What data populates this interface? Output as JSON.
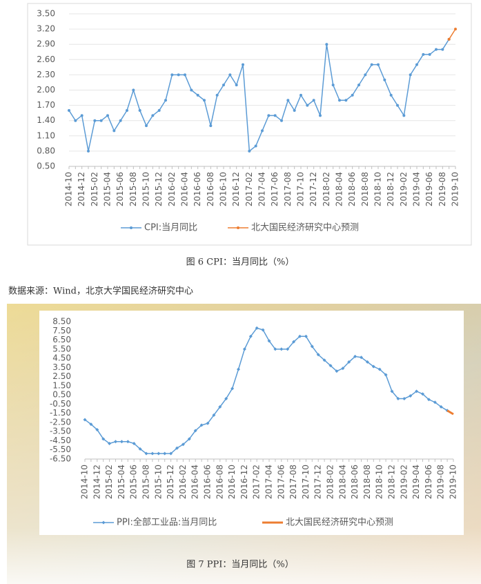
{
  "chart_data": [
    {
      "type": "line",
      "categories": [
        "2014-10",
        null,
        "2014-12",
        null,
        "2015-02",
        null,
        "2015-04",
        null,
        "2015-06",
        null,
        "2015-08",
        null,
        "2015-10",
        null,
        "2015-12",
        null,
        "2016-02",
        null,
        "2016-04",
        null,
        "2016-06",
        null,
        "2016-08",
        null,
        "2016-10",
        null,
        "2016-12",
        null,
        "2017-02",
        null,
        "2017-04",
        null,
        "2017-06",
        null,
        "2017-08",
        null,
        "2017-10",
        null,
        "2017-12",
        null,
        "2018-02",
        null,
        "2018-04",
        null,
        "2018-06",
        null,
        "2018-08",
        null,
        "2018-10",
        null,
        "2018-12",
        null,
        "2019-02",
        null,
        "2019-04",
        null,
        "2019-06",
        null,
        "2019-08",
        null,
        "2019-10"
      ],
      "series": [
        {
          "name": "CPI:当月同比",
          "color": "#5b9bd5",
          "values": [
            1.6,
            1.4,
            1.5,
            0.8,
            1.4,
            1.4,
            1.5,
            1.2,
            1.4,
            1.6,
            2.0,
            1.6,
            1.3,
            1.5,
            1.6,
            1.8,
            2.3,
            2.3,
            2.3,
            2.0,
            1.9,
            1.8,
            1.3,
            1.9,
            2.1,
            2.3,
            2.1,
            2.5,
            0.8,
            0.9,
            1.2,
            1.5,
            1.5,
            1.4,
            1.8,
            1.6,
            1.9,
            1.7,
            1.8,
            1.5,
            2.9,
            2.1,
            1.8,
            1.8,
            1.9,
            2.1,
            2.3,
            2.5,
            2.5,
            2.2,
            1.9,
            1.7,
            1.5,
            2.3,
            2.5,
            2.7,
            2.7,
            2.8,
            2.8,
            3.0,
            null
          ]
        },
        {
          "name": "北大国民经济研究中心预测",
          "color": "#ed7d31",
          "values": [
            null,
            null,
            null,
            null,
            null,
            null,
            null,
            null,
            null,
            null,
            null,
            null,
            null,
            null,
            null,
            null,
            null,
            null,
            null,
            null,
            null,
            null,
            null,
            null,
            null,
            null,
            null,
            null,
            null,
            null,
            null,
            null,
            null,
            null,
            null,
            null,
            null,
            null,
            null,
            null,
            null,
            null,
            null,
            null,
            null,
            null,
            null,
            null,
            null,
            null,
            null,
            null,
            null,
            null,
            null,
            null,
            null,
            null,
            null,
            3.0,
            3.2
          ]
        }
      ],
      "ylim": [
        0.5,
        3.5
      ],
      "yticks": [
        {
          "value": 0.5,
          "label": "0.50"
        },
        {
          "value": 0.8,
          "label": "0.80"
        },
        {
          "value": 1.1,
          "label": "1.10"
        },
        {
          "value": 1.4,
          "label": "1.40"
        },
        {
          "value": 1.7,
          "label": "1.70"
        },
        {
          "value": 2.0,
          "label": "2.00"
        },
        {
          "value": 2.3,
          "label": "2.30"
        },
        {
          "value": 2.6,
          "label": "2.60"
        },
        {
          "value": 2.9,
          "label": "2.90"
        },
        {
          "value": 3.2,
          "label": "3.20"
        },
        {
          "value": 3.5,
          "label": "3.50"
        }
      ],
      "grid": true
    },
    {
      "type": "line",
      "categories": [
        "2014-10",
        null,
        "2014-12",
        null,
        "2015-02",
        null,
        "2015-04",
        null,
        "2015-06",
        null,
        "2015-08",
        null,
        "2015-10",
        null,
        "2015-12",
        null,
        "2016-02",
        null,
        "2016-04",
        null,
        "2016-06",
        null,
        "2016-08",
        null,
        "2016-10",
        null,
        "2016-12",
        null,
        "2017-02",
        null,
        "2017-04",
        null,
        "2017-06",
        null,
        "2017-08",
        null,
        "2017-10",
        null,
        "2017-12",
        null,
        "2018-02",
        null,
        "2018-04",
        null,
        "2018-06",
        null,
        "2018-08",
        null,
        "2018-10",
        null,
        "2018-12",
        null,
        "2019-02",
        null,
        "2019-04",
        null,
        "2019-06",
        null,
        "2019-08",
        null,
        "2019-10"
      ],
      "series": [
        {
          "name": "PPI:全部工业品:当月同比",
          "color": "#5b9bd5",
          "values": [
            -2.2,
            -2.7,
            -3.3,
            -4.3,
            -4.8,
            -4.6,
            -4.6,
            -4.6,
            -4.8,
            -5.4,
            -5.9,
            -5.9,
            -5.9,
            -5.9,
            -5.9,
            -5.3,
            -4.9,
            -4.3,
            -3.4,
            -2.8,
            -2.6,
            -1.7,
            -0.8,
            0.1,
            1.2,
            3.3,
            5.5,
            6.9,
            7.8,
            7.6,
            6.4,
            5.5,
            5.5,
            5.5,
            6.3,
            6.9,
            6.9,
            5.8,
            4.9,
            4.3,
            3.7,
            3.1,
            3.4,
            4.1,
            4.7,
            4.6,
            4.1,
            3.6,
            3.3,
            2.7,
            0.9,
            0.1,
            0.1,
            0.4,
            0.9,
            0.6,
            0.0,
            -0.3,
            -0.8,
            -1.2,
            null
          ]
        },
        {
          "name": "北大国民经济研究中心预测",
          "color": "#ed7d31",
          "values": [
            null,
            null,
            null,
            null,
            null,
            null,
            null,
            null,
            null,
            null,
            null,
            null,
            null,
            null,
            null,
            null,
            null,
            null,
            null,
            null,
            null,
            null,
            null,
            null,
            null,
            null,
            null,
            null,
            null,
            null,
            null,
            null,
            null,
            null,
            null,
            null,
            null,
            null,
            null,
            null,
            null,
            null,
            null,
            null,
            null,
            null,
            null,
            null,
            null,
            null,
            null,
            null,
            null,
            null,
            null,
            null,
            null,
            null,
            null,
            -1.2,
            -1.6
          ]
        }
      ],
      "ylim": [
        -6.5,
        8.5
      ],
      "yticks": [
        {
          "value": -6.5,
          "label": "-6.50"
        },
        {
          "value": -5.5,
          "label": "-5.50"
        },
        {
          "value": -4.5,
          "label": "-4.50"
        },
        {
          "value": -3.5,
          "label": "-3.50"
        },
        {
          "value": -2.5,
          "label": "-2.50"
        },
        {
          "value": -1.5,
          "label": "-1.50"
        },
        {
          "value": -0.5,
          "label": "-0.50"
        },
        {
          "value": 0.5,
          "label": "0.50"
        },
        {
          "value": 1.5,
          "label": "1.50"
        },
        {
          "value": 2.5,
          "label": "2.50"
        },
        {
          "value": 3.5,
          "label": "3.50"
        },
        {
          "value": 4.5,
          "label": "4.50"
        },
        {
          "value": 5.5,
          "label": "5.50"
        },
        {
          "value": 6.5,
          "label": "6.50"
        },
        {
          "value": 7.5,
          "label": "7.50"
        },
        {
          "value": 8.5,
          "label": "8.50"
        }
      ],
      "grid": false
    }
  ],
  "captions": [
    "图 6 CPI：当月同比（%）",
    "图 7 PPI：当月同比（%）"
  ],
  "source": "数据来源：Wind，北京大学国民经济研究中心"
}
